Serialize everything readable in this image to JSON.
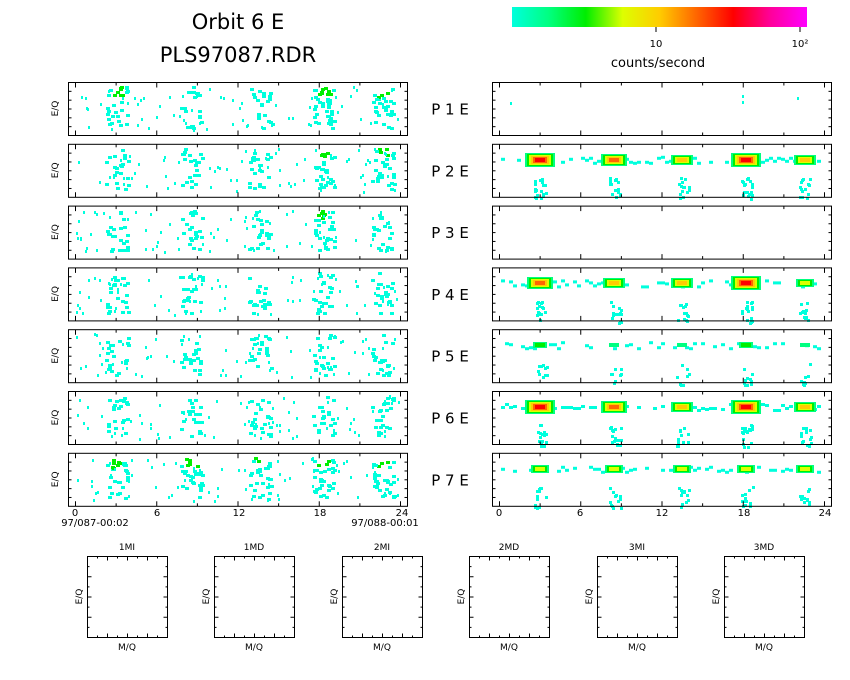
{
  "header": {
    "title": "Orbit  6  E",
    "filename": "PLS97087.RDR"
  },
  "colorbar": {
    "label": "counts/second",
    "tick_labels": [
      "10",
      "10²"
    ],
    "colors": [
      "#00ffdd",
      "#00ff80",
      "#00ee00",
      "#ddff00",
      "#ffcc00",
      "#ff6600",
      "#ff0000",
      "#ff0099",
      "#ff00ff"
    ]
  },
  "chart_data": {
    "type": "heatmap",
    "title": "Orbit  6  E",
    "ylabel": "E/Q",
    "xlim": [
      0,
      24
    ],
    "x_ticks": [
      "0",
      "6",
      "12",
      "18",
      "24"
    ],
    "time_start_label": "97/087-00:02",
    "time_end_label": "97/088-00:01",
    "units": "counts/second",
    "channels": [
      {
        "label": "P  1  E",
        "left_bursts": [
          3.0,
          8.5,
          13.5,
          18.2,
          22.5
        ],
        "left_intensity": [
          2,
          1,
          1,
          3,
          2
        ],
        "right_intensity": [
          0,
          0,
          0,
          0,
          0
        ]
      },
      {
        "label": "P  2  E",
        "left_bursts": [
          3.0,
          8.5,
          13.5,
          18.2,
          22.5
        ],
        "left_intensity": [
          1,
          1,
          1,
          2,
          2
        ],
        "right_intensity": [
          6,
          5,
          4,
          6,
          4
        ]
      },
      {
        "label": "P  3  E",
        "left_bursts": [
          3.0,
          8.5,
          13.5,
          18.2,
          22.5
        ],
        "left_intensity": [
          1,
          1,
          1,
          2,
          1
        ],
        "right_intensity": [
          0,
          0,
          0,
          0,
          0
        ]
      },
      {
        "label": "P  4  E",
        "left_bursts": [
          3.0,
          8.5,
          13.5,
          18.2,
          22.5
        ],
        "left_intensity": [
          1,
          1,
          1,
          1,
          1
        ],
        "right_intensity": [
          5,
          4,
          4,
          6,
          3
        ]
      },
      {
        "label": "P  5  E",
        "left_bursts": [
          3.0,
          8.5,
          13.5,
          18.2,
          22.5
        ],
        "left_intensity": [
          1,
          1,
          1,
          1,
          1
        ],
        "right_intensity": [
          2,
          1,
          1,
          2,
          1
        ]
      },
      {
        "label": "P  6  E",
        "left_bursts": [
          3.0,
          8.5,
          13.5,
          18.2,
          22.5
        ],
        "left_intensity": [
          1,
          1,
          1,
          1,
          1
        ],
        "right_intensity": [
          6,
          5,
          4,
          6,
          4
        ]
      },
      {
        "label": "P  7  E",
        "left_bursts": [
          3.0,
          8.5,
          13.5,
          18.2,
          22.5
        ],
        "left_intensity": [
          2,
          2,
          2,
          2,
          2
        ],
        "right_intensity": [
          3,
          3,
          3,
          3,
          3
        ]
      }
    ]
  },
  "small_panels": {
    "titles": [
      "1MI",
      "1MD",
      "2MI",
      "2MD",
      "3MI",
      "3MD"
    ],
    "xlabel": "M/Q",
    "ylabel": "E/Q"
  }
}
